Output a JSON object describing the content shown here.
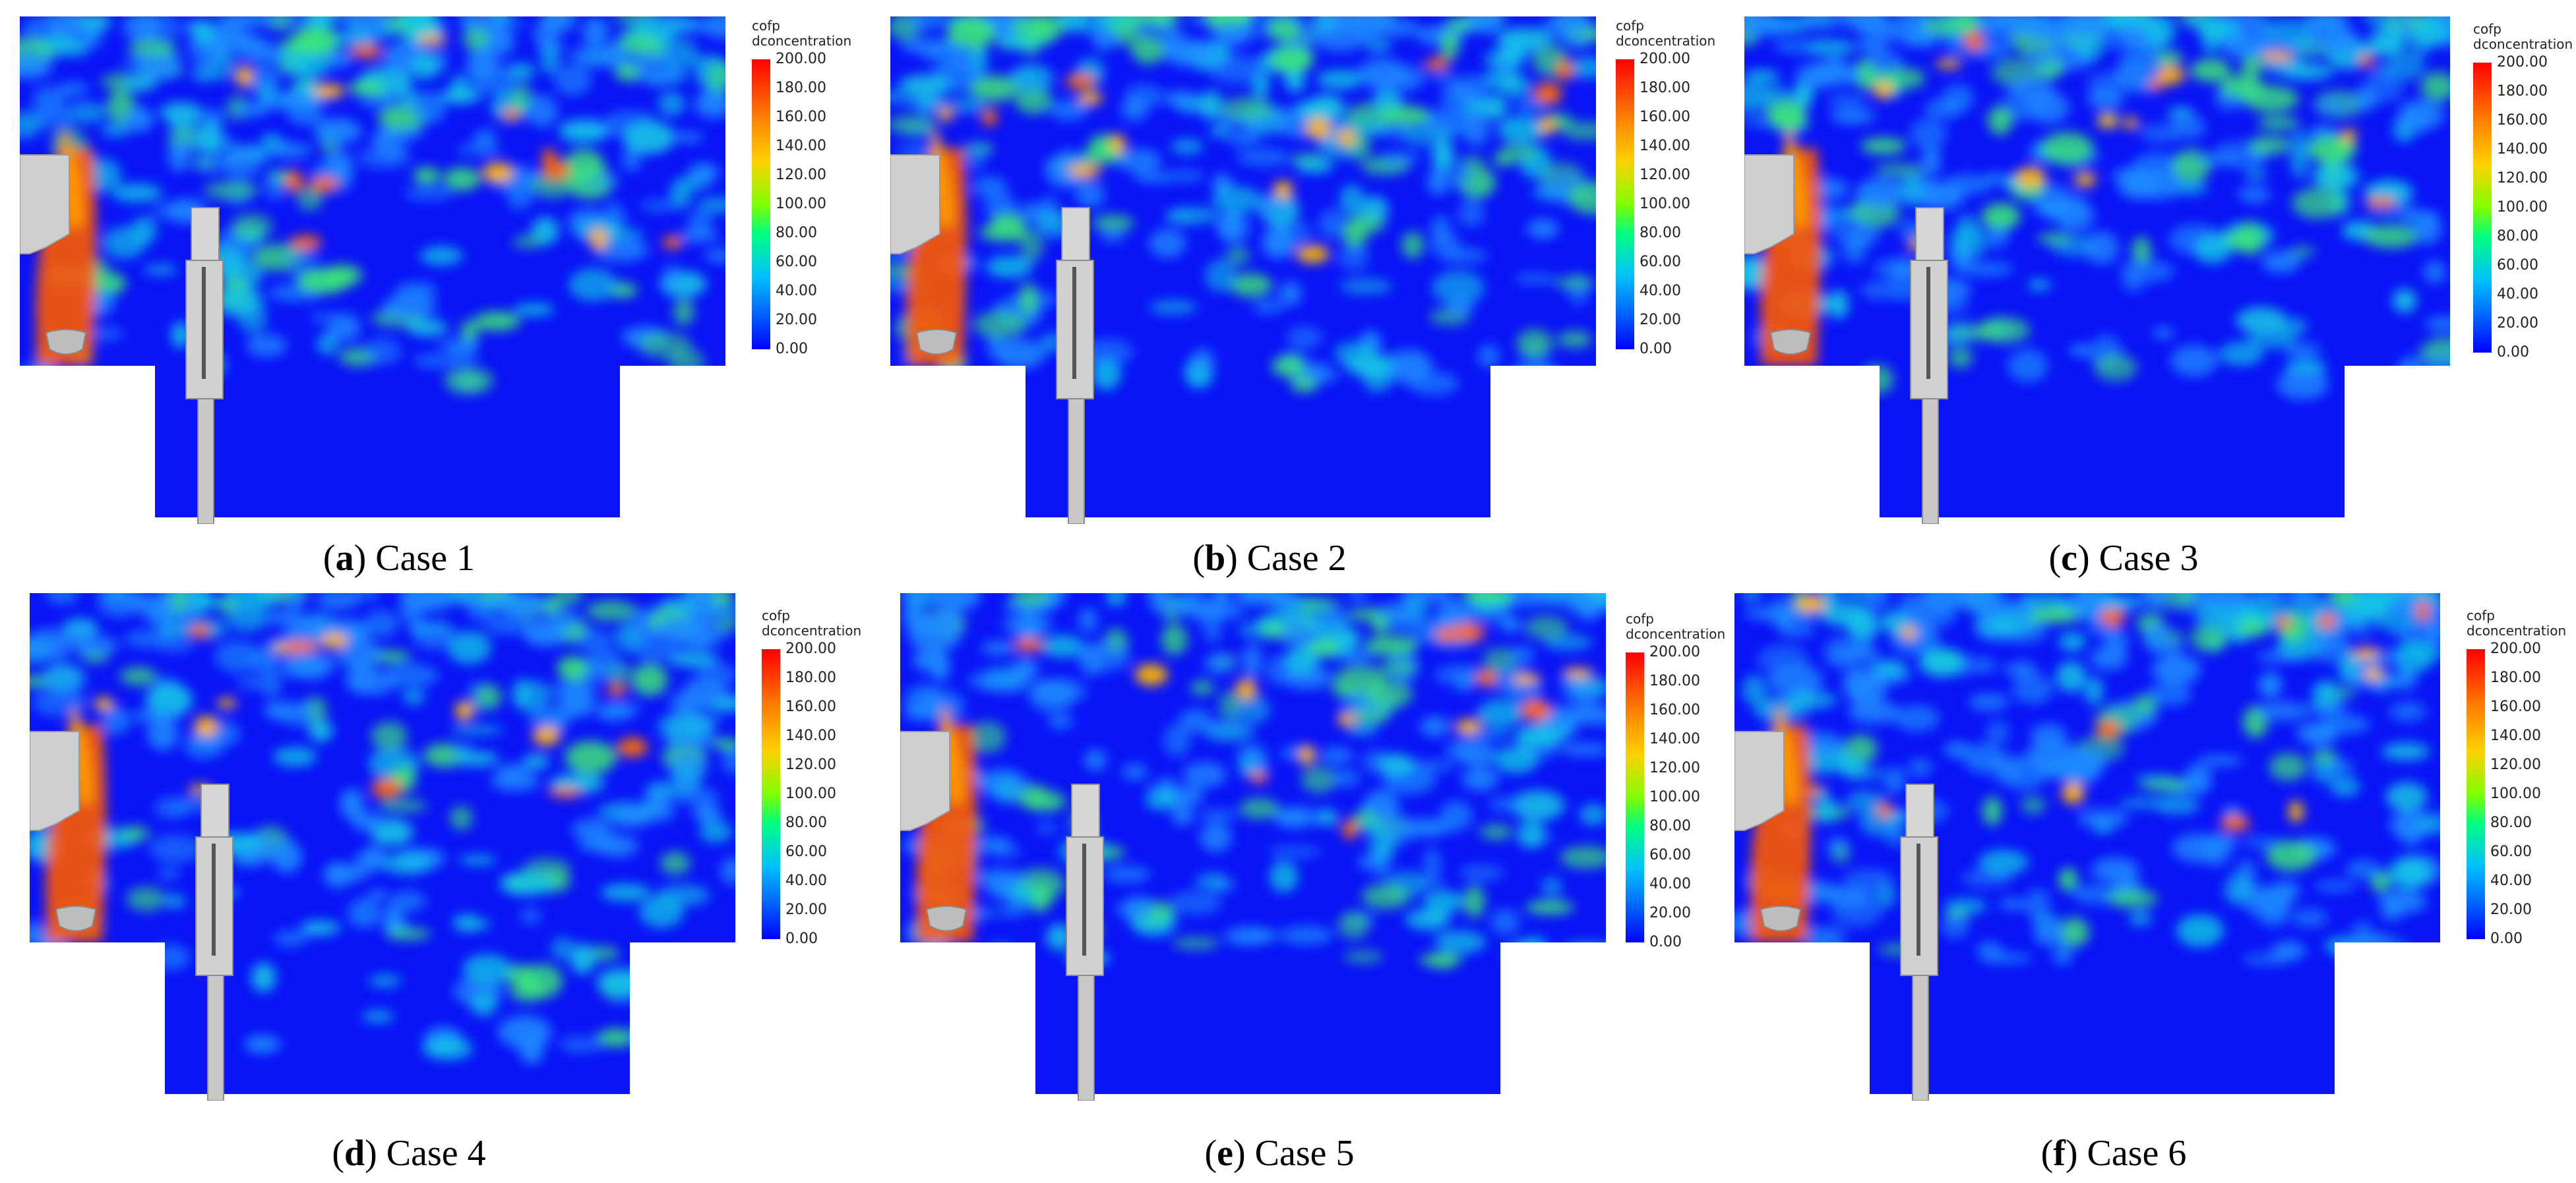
{
  "chart_data": [
    {
      "type": "heatmap",
      "panel_letter": "a",
      "panel_label": "Case 1",
      "colorbar": {
        "title_line1": "cofp",
        "title_line2": "dconcentration",
        "min": 0,
        "max": 200,
        "ticks": [
          "200.00",
          "180.00",
          "160.00",
          "140.00",
          "120.00",
          "100.00",
          "80.00",
          "60.00",
          "40.00",
          "20.00",
          "0.00"
        ]
      }
    },
    {
      "type": "heatmap",
      "panel_letter": "b",
      "panel_label": "Case 2",
      "colorbar": {
        "title_line1": "cofp",
        "title_line2": "dconcentration",
        "min": 0,
        "max": 200,
        "ticks": [
          "200.00",
          "180.00",
          "160.00",
          "140.00",
          "120.00",
          "100.00",
          "80.00",
          "60.00",
          "40.00",
          "20.00",
          "0.00"
        ]
      }
    },
    {
      "type": "heatmap",
      "panel_letter": "c",
      "panel_label": "Case 3",
      "colorbar": {
        "title_line1": "cofp",
        "title_line2": "dconcentration",
        "min": 0,
        "max": 200,
        "ticks": [
          "200.00",
          "180.00",
          "160.00",
          "140.00",
          "120.00",
          "100.00",
          "80.00",
          "60.00",
          "40.00",
          "20.00",
          "0.00"
        ]
      }
    },
    {
      "type": "heatmap",
      "panel_letter": "d",
      "panel_label": "Case 4",
      "colorbar": {
        "title_line1": "cofp",
        "title_line2": "dconcentration",
        "min": 0,
        "max": 200,
        "ticks": [
          "200.00",
          "180.00",
          "160.00",
          "140.00",
          "120.00",
          "100.00",
          "80.00",
          "60.00",
          "40.00",
          "20.00",
          "0.00"
        ]
      }
    },
    {
      "type": "heatmap",
      "panel_letter": "e",
      "panel_label": "Case 5",
      "colorbar": {
        "title_line1": "cofp",
        "title_line2": "dconcentration",
        "min": 0,
        "max": 200,
        "ticks": [
          "200.00",
          "180.00",
          "160.00",
          "140.00",
          "120.00",
          "100.00",
          "80.00",
          "60.00",
          "40.00",
          "20.00",
          "0.00"
        ]
      }
    },
    {
      "type": "heatmap",
      "panel_letter": "f",
      "panel_label": "Case 6",
      "colorbar": {
        "title_line1": "cofp",
        "title_line2": "dconcentration",
        "min": 0,
        "max": 200,
        "ticks": [
          "200.00",
          "180.00",
          "160.00",
          "140.00",
          "120.00",
          "100.00",
          "80.00",
          "60.00",
          "40.00",
          "20.00",
          "0.00"
        ]
      }
    }
  ]
}
